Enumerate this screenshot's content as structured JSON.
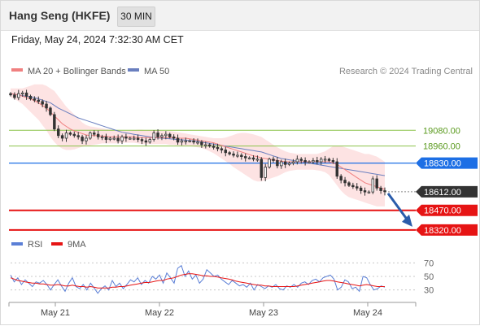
{
  "header": {
    "title": "Hang Seng (HKFE)",
    "timeframe": "30 MIN"
  },
  "datetime": "Friday, May 24, 2024 7:32:30 AM CET",
  "legend": {
    "ma20": "MA 20 + Bollinger Bands",
    "ma50": "MA 50",
    "credit": "Research © 2024 Trading Central",
    "rsi": "RSI",
    "ma9": "9MA"
  },
  "colors": {
    "ma20": "#f08080",
    "band_fill": "#fde3e3",
    "ma50": "#6a7fbf",
    "green_level": "#8bc34a",
    "pivot": "#1d6fe5",
    "last": "#333333",
    "support": "#e61414",
    "arrow": "#2a5caa",
    "rsi": "#5b7fd6",
    "rsi_ma": "#e61414",
    "candle": "#333333"
  },
  "chart_data": [
    {
      "type": "candlestick",
      "title": "Hang Seng (HKFE)",
      "timeframe": "30 MIN",
      "x_labels": [
        "May 21",
        "May 22",
        "May 23",
        "May 24"
      ],
      "ylim": [
        18270,
        19460
      ],
      "levels": [
        {
          "value": 19080,
          "label": "19080.00",
          "kind": "resistance"
        },
        {
          "value": 18960,
          "label": "18960.00",
          "kind": "resistance"
        },
        {
          "value": 18830,
          "label": "18830.00",
          "kind": "pivot"
        },
        {
          "value": 18612,
          "label": "18612.00",
          "kind": "last"
        },
        {
          "value": 18470,
          "label": "18470.00",
          "kind": "support"
        },
        {
          "value": 18320,
          "label": "18320.00",
          "kind": "support"
        }
      ],
      "close": [
        19350,
        19330,
        19360,
        19365,
        19340,
        19320,
        19310,
        19300,
        19280,
        19250,
        19200,
        19090,
        19040,
        19020,
        19060,
        19050,
        19040,
        19030,
        19000,
        19020,
        19060,
        19050,
        19030,
        19030,
        19010,
        19020,
        19020,
        19000,
        19030,
        19020,
        19020,
        19020,
        19010,
        19000,
        18990,
        19010,
        19060,
        19030,
        19040,
        19050,
        19030,
        19020,
        18990,
        19000,
        19000,
        19000,
        18990,
        18990,
        18970,
        18970,
        18960,
        18950,
        18940,
        18930,
        18910,
        18900,
        18890,
        18890,
        18880,
        18870,
        18870,
        18860,
        18860,
        18720,
        18800,
        18860,
        18850,
        18810,
        18840,
        18820,
        18830,
        18840,
        18860,
        18850,
        18840,
        18840,
        18850,
        18840,
        18860,
        18860,
        18850,
        18840,
        18730,
        18700,
        18680,
        18660,
        18650,
        18640,
        18620,
        18610,
        18610,
        18710,
        18640,
        18620,
        18612
      ],
      "ma20": [
        19360,
        19355,
        19350,
        19340,
        19330,
        19320,
        19305,
        19290,
        19270,
        19250,
        19220,
        19190,
        19160,
        19130,
        19110,
        19090,
        19075,
        19065,
        19055,
        19045,
        19040,
        19040,
        19040,
        19035,
        19035,
        19030,
        19030,
        19030,
        19030,
        19030,
        19030,
        19030,
        19025,
        19025,
        19025,
        19025,
        19025,
        19025,
        19025,
        19025,
        19025,
        19025,
        19020,
        19020,
        19020,
        19015,
        19010,
        19005,
        19000,
        18995,
        18990,
        18985,
        18975,
        18965,
        18955,
        18945,
        18935,
        18925,
        18915,
        18905,
        18895,
        18885,
        18880,
        18870,
        18865,
        18860,
        18855,
        18850,
        18845,
        18840,
        18840,
        18840,
        18840,
        18840,
        18840,
        18840,
        18840,
        18840,
        18840,
        18840,
        18840,
        18830,
        18820,
        18800,
        18780,
        18760,
        18740,
        18720,
        18700,
        18680,
        18670,
        18660,
        18650,
        18640,
        18630
      ],
      "ma50": [
        19360,
        19355,
        19350,
        19345,
        19340,
        19335,
        19330,
        19320,
        19310,
        19300,
        19290,
        19270,
        19250,
        19235,
        19220,
        19205,
        19190,
        19175,
        19165,
        19155,
        19145,
        19135,
        19125,
        19115,
        19105,
        19095,
        19085,
        19075,
        19065,
        19060,
        19055,
        19050,
        19045,
        19040,
        19035,
        19030,
        19025,
        19022,
        19020,
        19018,
        19015,
        19012,
        19010,
        19008,
        19005,
        19002,
        19000,
        18995,
        18990,
        18985,
        18980,
        18975,
        18970,
        18965,
        18960,
        18955,
        18950,
        18945,
        18940,
        18935,
        18930,
        18925,
        18920,
        18915,
        18905,
        18895,
        18885,
        18875,
        18865,
        18860,
        18855,
        18850,
        18845,
        18840,
        18835,
        18830,
        18825,
        18820,
        18815,
        18810,
        18805,
        18800,
        18795,
        18790,
        18785,
        18780,
        18775,
        18770,
        18765,
        18760,
        18755,
        18750,
        18745,
        18740,
        18735
      ],
      "bb_upper": [
        19400,
        19400,
        19400,
        19400,
        19410,
        19420,
        19430,
        19430,
        19430,
        19420,
        19400,
        19380,
        19340,
        19300,
        19260,
        19230,
        19200,
        19170,
        19140,
        19120,
        19110,
        19105,
        19100,
        19095,
        19090,
        19085,
        19080,
        19080,
        19075,
        19075,
        19075,
        19080,
        19085,
        19085,
        19080,
        19080,
        19080,
        19080,
        19075,
        19075,
        19075,
        19070,
        19065,
        19060,
        19055,
        19050,
        19045,
        19040,
        19035,
        19030,
        19025,
        19020,
        19020,
        19020,
        19025,
        19035,
        19045,
        19055,
        19060,
        19060,
        19055,
        19050,
        19040,
        19030,
        19010,
        18990,
        18970,
        18950,
        18935,
        18920,
        18910,
        18905,
        18900,
        18900,
        18900,
        18900,
        18900,
        18900,
        18910,
        18920,
        18940,
        18960,
        18960,
        18960,
        18950,
        18940,
        18930,
        18920,
        18910,
        18900,
        18900,
        18890,
        18880,
        18860,
        18840
      ],
      "bb_lower": [
        19330,
        19320,
        19300,
        19280,
        19250,
        19220,
        19190,
        19160,
        19120,
        19080,
        19030,
        18990,
        18960,
        18940,
        18930,
        18930,
        18935,
        18945,
        18955,
        18960,
        18965,
        18970,
        18975,
        18980,
        18980,
        18980,
        18980,
        18980,
        18985,
        18985,
        18985,
        18985,
        18980,
        18975,
        18975,
        18975,
        18975,
        18975,
        18975,
        18975,
        18970,
        18970,
        18965,
        18965,
        18965,
        18960,
        18955,
        18950,
        18945,
        18935,
        18920,
        18905,
        18885,
        18865,
        18845,
        18825,
        18800,
        18780,
        18760,
        18740,
        18720,
        18700,
        18690,
        18690,
        18700,
        18710,
        18720,
        18730,
        18745,
        18760,
        18770,
        18775,
        18780,
        18780,
        18780,
        18780,
        18780,
        18775,
        18770,
        18760,
        18740,
        18700,
        18660,
        18620,
        18590,
        18570,
        18560,
        18550,
        18540,
        18530,
        18520,
        18510,
        18500,
        18500,
        18500
      ]
    },
    {
      "type": "line",
      "title": "RSI",
      "yticks": [
        30,
        50,
        70
      ],
      "ylim": [
        20,
        80
      ],
      "series": [
        {
          "name": "RSI",
          "values": [
            52,
            42,
            48,
            38,
            45,
            40,
            35,
            42,
            40,
            44,
            38,
            30,
            38,
            45,
            36,
            28,
            40,
            48,
            35,
            32,
            38,
            30,
            40,
            33,
            25,
            32,
            36,
            30,
            44,
            35,
            40,
            32,
            38,
            45,
            42,
            48,
            38,
            44,
            40,
            50,
            46,
            52,
            40,
            55,
            48,
            40,
            62,
            66,
            50,
            58,
            46,
            52,
            40,
            46,
            60,
            55,
            50,
            52,
            46,
            42,
            38,
            44,
            40,
            36,
            38,
            34,
            40,
            30,
            38,
            35,
            32,
            36,
            34,
            38,
            32,
            30,
            36,
            34,
            38,
            34,
            40,
            42,
            38,
            44,
            46,
            42,
            48,
            50,
            52,
            46,
            30,
            34,
            45,
            42,
            32,
            34,
            28,
            50,
            48,
            38,
            30,
            32,
            36,
            34
          ]
        },
        {
          "name": "9MA",
          "values": [
            48,
            46,
            44,
            43,
            42,
            41,
            40,
            40,
            39,
            39,
            38,
            37,
            37,
            38,
            37,
            36,
            36,
            37,
            36,
            35,
            35,
            34,
            35,
            34,
            33,
            33,
            33,
            33,
            34,
            34,
            35,
            35,
            36,
            37,
            38,
            39,
            40,
            41,
            41,
            42,
            43,
            44,
            44,
            46,
            47,
            48,
            50,
            52,
            53,
            54,
            54,
            53,
            52,
            51,
            51,
            50,
            50,
            49,
            48,
            47,
            46,
            45,
            43,
            42,
            41,
            40,
            39,
            38,
            37,
            37,
            36,
            36,
            35,
            35,
            35,
            35,
            35,
            35,
            35,
            36,
            37,
            38,
            39,
            40,
            41,
            42,
            43,
            44,
            44,
            43,
            42,
            41,
            40,
            39,
            38,
            37,
            36,
            37,
            38,
            37,
            36,
            35,
            35,
            35
          ]
        }
      ]
    }
  ]
}
